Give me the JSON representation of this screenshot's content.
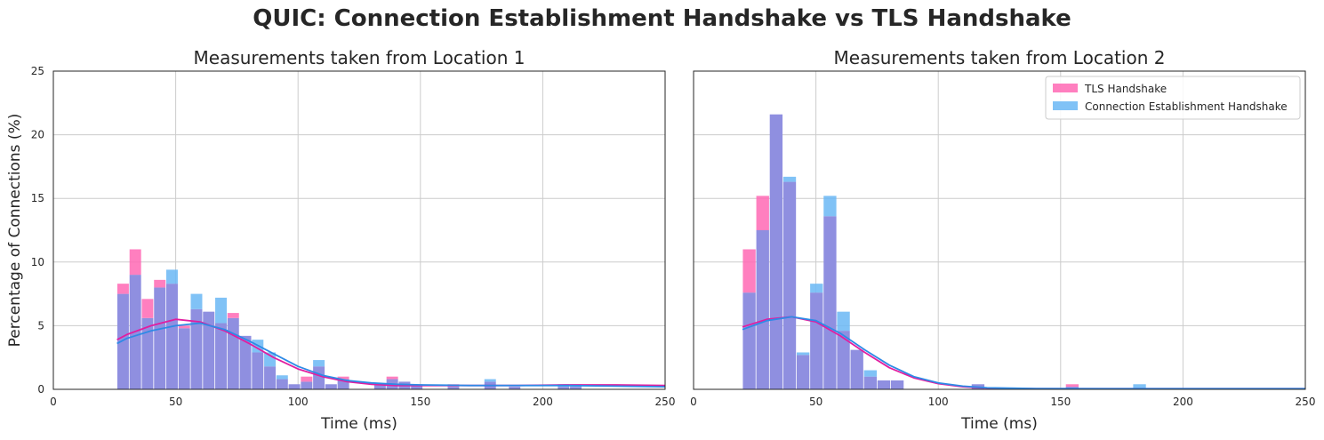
{
  "figure": {
    "title": "QUIC: Connection Establishment Handshake vs TLS Handshake"
  },
  "colors": {
    "tls": "#ff69b4",
    "conn": "#6ab7f5",
    "overlap": "#8f8fe0",
    "tls_kde": "#e11ea0",
    "conn_kde": "#2e8ae6",
    "grid": "#cccccc"
  },
  "legend": {
    "position": "top-right (Location 2 panel)",
    "items": [
      "TLS Handshake",
      "Connection Establishment Handshake"
    ]
  },
  "chart_data": [
    {
      "type": "bar",
      "subtype": "histogram with KDE",
      "title": "Measurements taken from Location 1",
      "xlabel": "Time (ms)",
      "ylabel": "Percentage of Connections (%)",
      "xlim": [
        0,
        250
      ],
      "ylim": [
        0,
        25
      ],
      "xticks": [
        0,
        50,
        100,
        150,
        200,
        250
      ],
      "yticks": [
        0,
        5,
        10,
        15,
        20,
        25
      ],
      "grid": true,
      "bin_width": 5,
      "bin_edges_start": 26,
      "series": [
        {
          "name": "TLS Handshake",
          "values": [
            8.3,
            11.0,
            7.1,
            8.6,
            8.3,
            5.0,
            6.3,
            6.1,
            5.2,
            6.0,
            4.2,
            2.9,
            1.8,
            0.8,
            0.4,
            1.0,
            1.8,
            0.4,
            1.0,
            0,
            0,
            0.4,
            1.0,
            0.6,
            0.4,
            0,
            0,
            0.4,
            0,
            0,
            0.6,
            0,
            0.2,
            0,
            0,
            0,
            0.2,
            0.2,
            0,
            0,
            0,
            0,
            0,
            0,
            0,
            0.6,
            1.0,
            0,
            0.6,
            0.8,
            1.0,
            0.6,
            0.4,
            0.2,
            0.2,
            0.2,
            0.2,
            0.2,
            0.2,
            0.1,
            0.1,
            0.2,
            0.2,
            0.2,
            0.2,
            0.2,
            0.2,
            0.2,
            0.2,
            0.2
          ],
          "kde": [
            [
              26,
              3.9
            ],
            [
              30,
              4.3
            ],
            [
              40,
              5.0
            ],
            [
              50,
              5.5
            ],
            [
              60,
              5.3
            ],
            [
              70,
              4.6
            ],
            [
              80,
              3.6
            ],
            [
              90,
              2.5
            ],
            [
              100,
              1.6
            ],
            [
              110,
              1.0
            ],
            [
              120,
              0.6
            ],
            [
              130,
              0.4
            ],
            [
              140,
              0.3
            ],
            [
              150,
              0.3
            ],
            [
              170,
              0.3
            ],
            [
              190,
              0.3
            ],
            [
              210,
              0.35
            ],
            [
              230,
              0.35
            ],
            [
              250,
              0.3
            ]
          ]
        },
        {
          "name": "Connection Establishment Handshake",
          "values": [
            7.5,
            9.0,
            5.6,
            8.0,
            9.4,
            4.8,
            7.5,
            6.1,
            7.2,
            5.6,
            4.2,
            3.9,
            2.9,
            1.1,
            0.4,
            0.6,
            2.3,
            0.4,
            0.8,
            0,
            0,
            0.4,
            0.8,
            0.6,
            0.4,
            0,
            0,
            0.2,
            0,
            0,
            0.8,
            0,
            0.2,
            0,
            0,
            0,
            0.4,
            0.4,
            0,
            0,
            0,
            0,
            0,
            0,
            0,
            0.8,
            0.6,
            0,
            0.6,
            0.4,
            0.8,
            0.4,
            0.2,
            0.2,
            0.2,
            0.2,
            0.2,
            0.2,
            0.2,
            0.1,
            0.1,
            0.2,
            0.2,
            0.2,
            0.2,
            0.2,
            0.2,
            0.2,
            0.2,
            0.2
          ],
          "kde": [
            [
              26,
              3.6
            ],
            [
              30,
              4.0
            ],
            [
              40,
              4.6
            ],
            [
              50,
              5.0
            ],
            [
              60,
              5.2
            ],
            [
              70,
              4.7
            ],
            [
              80,
              3.8
            ],
            [
              90,
              2.8
            ],
            [
              100,
              1.8
            ],
            [
              110,
              1.1
            ],
            [
              120,
              0.7
            ],
            [
              130,
              0.5
            ],
            [
              140,
              0.4
            ],
            [
              150,
              0.35
            ],
            [
              170,
              0.3
            ],
            [
              190,
              0.3
            ],
            [
              210,
              0.3
            ],
            [
              230,
              0.25
            ],
            [
              250,
              0.2
            ]
          ]
        }
      ]
    },
    {
      "type": "bar",
      "subtype": "histogram with KDE",
      "title": "Measurements taken from Location 2",
      "xlabel": "Time (ms)",
      "ylabel": "",
      "xlim": [
        0,
        250
      ],
      "ylim": [
        0,
        25
      ],
      "xticks": [
        0,
        50,
        100,
        150,
        200,
        250
      ],
      "grid": true,
      "bin_width": 5.5,
      "bin_edges_start": 20,
      "series": [
        {
          "name": "TLS Handshake",
          "values": [
            11.0,
            15.2,
            21.6,
            16.3,
            2.7,
            7.6,
            13.6,
            4.6,
            3.1,
            1.0,
            0.7,
            0.7,
            0,
            0,
            0,
            0,
            0,
            0.4,
            0,
            0,
            0,
            0,
            0,
            0,
            0.4,
            0,
            0,
            0,
            0,
            0,
            0,
            0,
            0,
            0,
            0,
            0,
            0,
            0,
            0,
            0,
            0,
            0,
            0,
            0
          ],
          "kde": [
            [
              20,
              4.9
            ],
            [
              30,
              5.5
            ],
            [
              40,
              5.7
            ],
            [
              50,
              5.3
            ],
            [
              60,
              4.2
            ],
            [
              70,
              2.9
            ],
            [
              80,
              1.7
            ],
            [
              90,
              0.9
            ],
            [
              100,
              0.45
            ],
            [
              110,
              0.2
            ],
            [
              120,
              0.1
            ],
            [
              140,
              0.05
            ],
            [
              170,
              0.05
            ],
            [
              200,
              0.05
            ],
            [
              250,
              0.05
            ]
          ]
        },
        {
          "name": "Connection Establishment Handshake",
          "values": [
            7.6,
            12.5,
            21.6,
            16.7,
            2.9,
            8.3,
            15.2,
            6.1,
            3.1,
            1.5,
            0.7,
            0.7,
            0,
            0,
            0,
            0,
            0,
            0.4,
            0,
            0,
            0,
            0,
            0,
            0,
            0.2,
            0,
            0,
            0,
            0,
            0.4,
            0,
            0,
            0,
            0,
            0,
            0,
            0,
            0,
            0,
            0,
            0,
            0,
            0,
            0
          ],
          "kde": [
            [
              20,
              4.7
            ],
            [
              30,
              5.4
            ],
            [
              40,
              5.7
            ],
            [
              50,
              5.4
            ],
            [
              60,
              4.4
            ],
            [
              70,
              3.1
            ],
            [
              80,
              1.9
            ],
            [
              90,
              1.0
            ],
            [
              100,
              0.5
            ],
            [
              110,
              0.25
            ],
            [
              120,
              0.12
            ],
            [
              140,
              0.06
            ],
            [
              170,
              0.05
            ],
            [
              200,
              0.05
            ],
            [
              250,
              0.05
            ]
          ]
        }
      ]
    }
  ]
}
